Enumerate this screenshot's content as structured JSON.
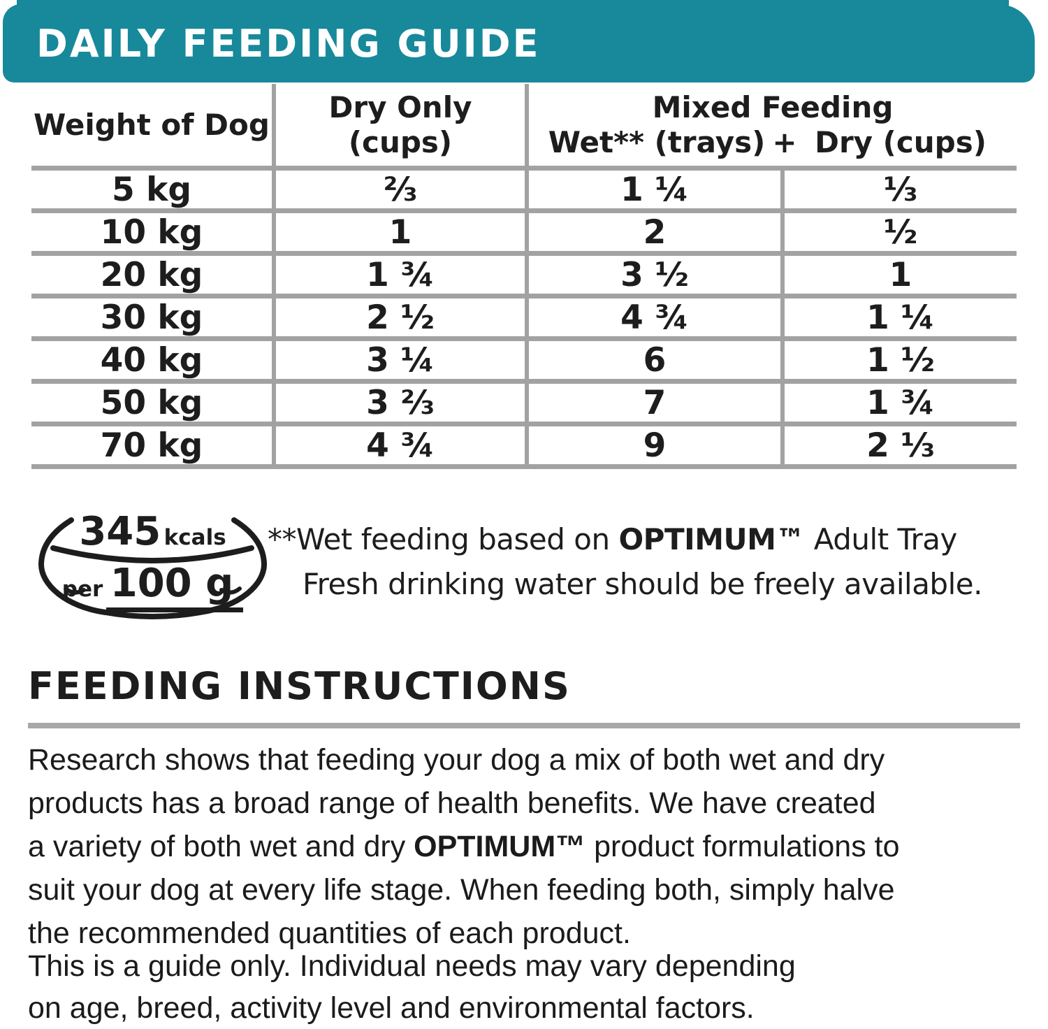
{
  "colors": {
    "teal": "#17899B",
    "line_gray": "#A2A2A2",
    "text": "#1D1D1D"
  },
  "header": {
    "title": "DAILY FEEDING GUIDE"
  },
  "table": {
    "col_weight": "Weight of Dog",
    "col_dry_line1": "Dry Only",
    "col_dry_line2": "(cups)",
    "col_mixed": "Mixed Feeding",
    "col_wet": "Wet** (trays)",
    "plus": "+",
    "col_mixed_dry": "Dry (cups)",
    "rows": [
      {
        "weight": "5 kg",
        "dry": "⅔",
        "wet": "1 ¼",
        "mixed_dry": "⅓"
      },
      {
        "weight": "10 kg",
        "dry": "1",
        "wet": "2",
        "mixed_dry": "½"
      },
      {
        "weight": "20 kg",
        "dry": "1 ¾",
        "wet": "3 ½",
        "mixed_dry": "1"
      },
      {
        "weight": "30 kg",
        "dry": "2 ½",
        "wet": "4 ¾",
        "mixed_dry": "1 ¼"
      },
      {
        "weight": "40 kg",
        "dry": "3 ¼",
        "wet": "6",
        "mixed_dry": "1 ½"
      },
      {
        "weight": "50 kg",
        "dry": "3 ⅔",
        "wet": "7",
        "mixed_dry": "1 ¾"
      },
      {
        "weight": "70 kg",
        "dry": "4 ¾",
        "wet": "9",
        "mixed_dry": "2 ⅓"
      }
    ]
  },
  "energy_badge": {
    "kcal_value": "345",
    "kcal_unit": "kcals",
    "per_label": "per",
    "per_amount": "100 g"
  },
  "wet_note": {
    "lines": [
      [
        {
          "text": "**Wet feeding based on "
        },
        {
          "text": "OPTIMUM™",
          "bold": true
        },
        {
          "text": " Adult Tray"
        }
      ],
      [
        {
          "text": "Fresh drinking water should be freely available."
        }
      ]
    ]
  },
  "instructions": {
    "heading": "FEEDING INSTRUCTIONS",
    "para1_lines": [
      [
        {
          "text": "Research shows that feeding your dog a mix of both wet and dry"
        }
      ],
      [
        {
          "text": "products has a broad range of health benefits.  We have created"
        }
      ],
      [
        {
          "text": "a variety of both wet and dry "
        },
        {
          "text": "OPTIMUM™",
          "bold": true
        },
        {
          "text": " product formulations to"
        }
      ],
      [
        {
          "text": "suit your dog at every life stage.  When feeding both, simply halve"
        }
      ],
      [
        {
          "text": "the recommended quantities of each product."
        }
      ]
    ],
    "para2_lines": [
      [
        {
          "text": "This is a guide only.  Individual needs may vary depending"
        }
      ],
      [
        {
          "text": "on age, breed, activity level and environmental factors."
        }
      ]
    ]
  }
}
